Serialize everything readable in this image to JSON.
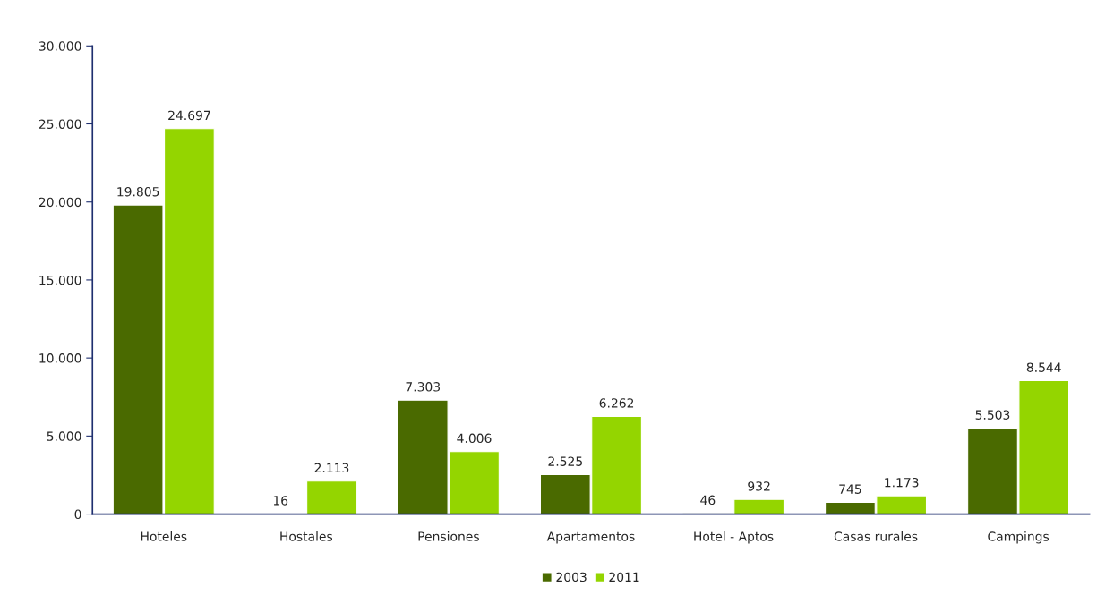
{
  "chart_data": {
    "type": "bar",
    "categories": [
      "Hoteles",
      "Hostales",
      "Pensiones",
      "Apartamentos",
      "Hotel - Aptos",
      "Casas rurales",
      "Campings"
    ],
    "series": [
      {
        "name": "2003",
        "color": "#4a6a00",
        "values": [
          19805,
          16,
          7303,
          2525,
          46,
          745,
          5503
        ],
        "value_labels": [
          "19.805",
          "16",
          "7.303",
          "2.525",
          "46",
          "745",
          "5.503"
        ]
      },
      {
        "name": "2011",
        "color": "#94d500",
        "values": [
          24697,
          2113,
          4006,
          6262,
          932,
          1173,
          8544
        ],
        "value_labels": [
          "24.697",
          "2.113",
          "4.006",
          "6.262",
          "932",
          "1.173",
          "8.544"
        ]
      }
    ],
    "ylim": [
      0,
      30000
    ],
    "yticks": [
      {
        "value": 0,
        "label": "0"
      },
      {
        "value": 5000,
        "label": "5.000"
      },
      {
        "value": 10000,
        "label": "10.000"
      },
      {
        "value": 15000,
        "label": "15.000"
      },
      {
        "value": 20000,
        "label": "20.000"
      },
      {
        "value": 25000,
        "label": "25.000"
      },
      {
        "value": 30000,
        "label": "30.000"
      }
    ],
    "grid": false,
    "legend": "bottom"
  }
}
